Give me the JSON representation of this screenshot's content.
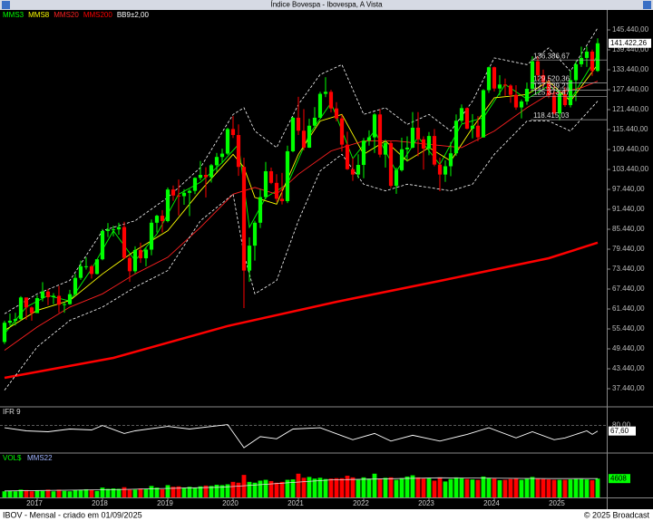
{
  "chart_data": {
    "type": "candlestick",
    "title": "Índice Bovespa - Ibovespa, A Vista",
    "up_color": "#00ff00",
    "down_color": "#ff0000",
    "xlim": [
      -0.83,
      110.67
    ],
    "xticks": [
      {
        "value": 6,
        "label": "2017"
      },
      {
        "value": 18,
        "label": "2018"
      },
      {
        "value": 30,
        "label": "2019"
      },
      {
        "value": 42,
        "label": "2020"
      },
      {
        "value": 54,
        "label": "2021"
      },
      {
        "value": 66,
        "label": "2022"
      },
      {
        "value": 78,
        "label": "2023"
      },
      {
        "value": 90,
        "label": "2024"
      },
      {
        "value": 102,
        "label": "2025"
      }
    ],
    "ylim": [
      32258,
      150622
    ],
    "yticks": [
      {
        "value": 37440,
        "label": "37.440,00"
      },
      {
        "value": 43440,
        "label": "43.440,00"
      },
      {
        "value": 49440,
        "label": "49.440,00"
      },
      {
        "value": 55440,
        "label": "55.440,00"
      },
      {
        "value": 61440,
        "label": "61.440,00"
      },
      {
        "value": 67440,
        "label": "67.440,00"
      },
      {
        "value": 73440,
        "label": "73.440,00"
      },
      {
        "value": 79440,
        "label": "79.440,00"
      },
      {
        "value": 85440,
        "label": "85.440,00"
      },
      {
        "value": 91440,
        "label": "91.440,00"
      },
      {
        "value": 97440,
        "label": "97.440,00"
      },
      {
        "value": 103440,
        "label": "103.440,00"
      },
      {
        "value": 109440,
        "label": "109.440,00"
      },
      {
        "value": 115440,
        "label": "115.440,00"
      },
      {
        "value": 121440,
        "label": "121.440,00"
      },
      {
        "value": 127440,
        "label": "127.440,00"
      },
      {
        "value": 133440,
        "label": "133.440,00"
      },
      {
        "value": 139440,
        "label": "139.440,00"
      },
      {
        "value": 145440,
        "label": "145.440,00"
      }
    ],
    "open": [
      51500,
      57300,
      57900,
      58400,
      64900,
      61900,
      60200,
      64700,
      66700,
      65000,
      65400,
      62700,
      62900,
      65900,
      70800,
      74300,
      74300,
      72000,
      76400,
      84900,
      85400,
      85400,
      86100,
      76800,
      72800,
      79200,
      76700,
      79300,
      87400,
      89500,
      87900,
      97400,
      95600,
      95400,
      96400,
      97000,
      100900,
      101800,
      101100,
      104700,
      107200,
      108200,
      115600,
      113800,
      104200,
      73000,
      80500,
      87400,
      95100,
      102900,
      99400,
      94600,
      93900,
      108900,
      119000,
      115100,
      110000,
      116600,
      119000,
      126200,
      126800,
      121800,
      118800,
      110900,
      103500,
      101900,
      104800,
      112100,
      113100,
      120000,
      107900,
      111400,
      98500,
      103200,
      109500,
      110000,
      116000,
      112500,
      109700,
      113500,
      104900,
      101900,
      104400,
      108300,
      118100,
      121900,
      115700,
      116600,
      113100,
      127300,
      134200,
      127800,
      129000,
      128700,
      125900,
      122100,
      123900,
      127700,
      136000,
      131800,
      129700,
      125700,
      120300,
      126100,
      122800,
      130300,
      135100,
      137000,
      138900,
      133100
    ],
    "high": [
      57900,
      60100,
      60300,
      65300,
      64900,
      62200,
      65600,
      69500,
      67500,
      66200,
      68400,
      63500,
      67200,
      72000,
      76000,
      77000,
      74700,
      76400,
      85500,
      87300,
      86500,
      87400,
      87700,
      77500,
      80300,
      81400,
      79900,
      88400,
      89800,
      91200,
      98000,
      98600,
      100400,
      97500,
      97500,
      101100,
      106000,
      104100,
      105100,
      108400,
      109700,
      116000,
      119500,
      117000,
      107000,
      83000,
      88000,
      97500,
      105700,
      104000,
      102000,
      102400,
      110600,
      119300,
      125300,
      121600,
      118700,
      122200,
      126800,
      131200,
      127400,
      123700,
      119900,
      114800,
      106900,
      108000,
      112900,
      115200,
      120400,
      121600,
      112400,
      112000,
      104000,
      113000,
      113400,
      120700,
      120700,
      113400,
      114700,
      115600,
      107000,
      106200,
      111700,
      120000,
      123000,
      122100,
      120100,
      119500,
      127600,
      134400,
      134400,
      131800,
      130800,
      129100,
      128800,
      124500,
      129600,
      137500,
      137500,
      133500,
      131300,
      128600,
      127200,
      128300,
      133300,
      136000,
      140400,
      140400,
      139500,
      142900
    ],
    "low": [
      50900,
      56400,
      56500,
      58000,
      58200,
      57900,
      60200,
      63700,
      62600,
      62900,
      60300,
      60300,
      62700,
      65400,
      70200,
      73300,
      70600,
      71800,
      76100,
      83100,
      83300,
      83800,
      76500,
      69600,
      72200,
      75300,
      74300,
      77600,
      84500,
      84500,
      87500,
      94000,
      89600,
      92800,
      89400,
      96000,
      100200,
      95000,
      99500,
      102700,
      105300,
      107800,
      112900,
      101500,
      61700,
      69600,
      76000,
      85800,
      94500,
      99000,
      93700,
      92900,
      93300,
      108600,
      113800,
      109200,
      109900,
      116000,
      119000,
      125200,
      120600,
      117900,
      108800,
      103300,
      100000,
      100800,
      100800,
      110600,
      108400,
      107100,
      104000,
      97900,
      96100,
      102800,
      105800,
      109800,
      107400,
      103400,
      107700,
      104400,
      96900,
      99700,
      101400,
      107500,
      117400,
      115500,
      112800,
      111900,
      113000,
      126500,
      126900,
      125700,
      125600,
      123500,
      121400,
      118800,
      122900,
      126700,
      130200,
      127800,
      124900,
      120000,
      118200,
      122300,
      122100,
      124000,
      134300,
      134300,
      131600,
      132800
    ],
    "close": [
      57300,
      57900,
      58400,
      64900,
      61900,
      60200,
      64700,
      66700,
      64980,
      65400,
      62700,
      62900,
      65900,
      70800,
      74300,
      74300,
      71970,
      76400,
      84900,
      85400,
      85400,
      86100,
      76800,
      72800,
      79200,
      76700,
      79300,
      87400,
      89500,
      87900,
      97400,
      95600,
      95400,
      96400,
      97000,
      100900,
      101800,
      101100,
      104700,
      107200,
      108200,
      115600,
      113800,
      104200,
      73000,
      80500,
      87400,
      95100,
      102900,
      99400,
      94600,
      93900,
      108900,
      119000,
      115100,
      110000,
      116600,
      119000,
      126200,
      126800,
      121800,
      118800,
      110900,
      103500,
      101900,
      104800,
      112100,
      113100,
      119999,
      107900,
      111400,
      98500,
      103200,
      109500,
      110000,
      116000,
      112500,
      109700,
      113500,
      104900,
      101900,
      104400,
      108300,
      118100,
      121900,
      115700,
      116600,
      113100,
      127300,
      134200,
      127800,
      129000,
      128700,
      125900,
      122100,
      123900,
      127700,
      136000,
      131800,
      129700,
      125700,
      120300,
      126100,
      122800,
      130300,
      135100,
      137000,
      138900,
      133100,
      141422.26
    ],
    "last_price": {
      "value": 141422.26,
      "label": "141.422,26"
    },
    "annotations": [
      {
        "value": 136386.67,
        "label": "136.386,67"
      },
      {
        "value": 129520.36,
        "label": "129.520,36"
      },
      {
        "value": 127339.21,
        "label": "127.339,21"
      },
      {
        "value": 125373.47,
        "label": "125.373,47"
      },
      {
        "value": 118415.03,
        "label": "118.415,03"
      }
    ],
    "overlays": [
      {
        "name": "MMS3",
        "color": "#00ff00",
        "x": [
          0,
          4,
          8,
          12,
          16,
          20,
          24,
          28,
          32,
          36,
          40,
          43,
          45,
          48,
          52,
          56,
          60,
          64,
          68,
          72,
          76,
          80,
          84,
          88,
          92,
          96,
          100,
          104,
          109
        ],
        "values": [
          54000,
          62000,
          65500,
          63800,
          73500,
          85000,
          76000,
          84000,
          96000,
          99600,
          105500,
          111000,
          86000,
          95000,
          99000,
          113900,
          123500,
          106700,
          115000,
          102800,
          113200,
          104900,
          117100,
          119000,
          129000,
          124600,
          128700,
          124400,
          137800
        ]
      },
      {
        "name": "MMS8",
        "color": "#ffff00",
        "x": [
          0,
          6,
          12,
          18,
          24,
          30,
          36,
          42,
          44,
          46,
          50,
          54,
          58,
          62,
          66,
          70,
          74,
          78,
          82,
          86,
          90,
          96,
          100,
          104,
          109
        ],
        "values": [
          55000,
          61000,
          64000,
          72000,
          79000,
          85000,
          97000,
          108000,
          104000,
          95000,
          93000,
          108000,
          118000,
          120000,
          108000,
          112000,
          106000,
          110000,
          106000,
          116000,
          125000,
          126000,
          130000,
          124000,
          135000
        ]
      },
      {
        "name": "MMS20",
        "color": "#ff2020",
        "x": [
          0,
          6,
          12,
          18,
          24,
          30,
          36,
          42,
          46,
          50,
          54,
          60,
          66,
          72,
          78,
          84,
          90,
          96,
          100,
          106,
          109
        ],
        "values": [
          49000,
          56000,
          62000,
          66000,
          72000,
          77000,
          86000,
          96000,
          98000,
          96000,
          102000,
          109000,
          112000,
          112000,
          111000,
          110000,
          115000,
          122000,
          126000,
          128000,
          130000
        ]
      },
      {
        "name": "MMS200",
        "color": "#ff0000",
        "x": [
          0,
          20,
          41,
          61,
          80,
          100,
          109
        ],
        "values": [
          40700,
          46700,
          56300,
          63600,
          69900,
          76700,
          81400
        ]
      },
      {
        "name": "BB9±2,00",
        "color": "#ffffff",
        "x": [
          0,
          6,
          12,
          18,
          24,
          30,
          36,
          42,
          44,
          46,
          50,
          54,
          58,
          62,
          66,
          70,
          74,
          78,
          82,
          86,
          90,
          96,
          100,
          104,
          109
        ],
        "upper": [
          60000,
          66000,
          70000,
          85000,
          88000,
          95000,
          104000,
          120000,
          122000,
          115000,
          110000,
          123000,
          132000,
          135000,
          120000,
          122000,
          117000,
          120000,
          115000,
          124000,
          137000,
          135000,
          140000,
          133000,
          146000
        ],
        "lower": [
          37000,
          50000,
          58000,
          62000,
          68000,
          73000,
          88000,
          96000,
          78000,
          66000,
          70000,
          88000,
          103000,
          108000,
          99000,
          97000,
          99000,
          98000,
          97000,
          99000,
          108000,
          118000,
          118000,
          115000,
          124000
        ]
      }
    ],
    "ifr": {
      "title": "IFR 9",
      "color": "#ffffff",
      "ylim": [
        20,
        120
      ],
      "yticks": [
        {
          "value": 80,
          "label": "80,00"
        }
      ],
      "x": [
        0,
        4,
        8,
        12,
        16,
        18,
        22,
        24,
        30,
        34,
        41,
        44,
        47,
        50,
        53,
        58,
        64,
        68,
        71,
        75,
        80,
        85,
        89,
        94,
        97,
        101,
        103,
        107,
        108,
        109
      ],
      "values": [
        75,
        68,
        66,
        72,
        70,
        80,
        62,
        68,
        78,
        72,
        82,
        30,
        55,
        50,
        72,
        75,
        48,
        62,
        45,
        58,
        45,
        60,
        75,
        52,
        66,
        48,
        52,
        68,
        60,
        67.6
      ],
      "last": {
        "value": 67.6,
        "label": "67,60"
      }
    },
    "volume": {
      "title": "VOL$",
      "ylim": [
        0,
        10400
      ],
      "values": [
        1500,
        1600,
        1500,
        1900,
        1800,
        1500,
        1700,
        1600,
        1900,
        1500,
        1900,
        1600,
        1500,
        1800,
        1900,
        2000,
        1900,
        1600,
        2400,
        2100,
        2200,
        2100,
        2500,
        1900,
        1900,
        2200,
        2100,
        2800,
        2400,
        2000,
        3000,
        2600,
        2700,
        2400,
        2600,
        2400,
        2700,
        2900,
        2800,
        3100,
        3000,
        3200,
        3800,
        3600,
        5500,
        3800,
        3600,
        4100,
        4300,
        4000,
        3600,
        3800,
        4300,
        4400,
        5800,
        4800,
        5000,
        4600,
        4800,
        4500,
        4600,
        4700,
        4700,
        5300,
        4900,
        4300,
        4900,
        4600,
        5800,
        4600,
        4800,
        4900,
        4300,
        4700,
        5100,
        5400,
        4900,
        4600,
        4700,
        4100,
        4900,
        3900,
        4500,
        4900,
        4700,
        4500,
        4400,
        4300,
        5100,
        4800,
        4600,
        4200,
        4300,
        4500,
        4700,
        4300,
        4600,
        5000,
        4600,
        4500,
        4400,
        4300,
        4300,
        4300,
        4400,
        4500,
        4500,
        4400,
        4200,
        4608
      ],
      "average": {
        "name": "MMS22",
        "color": "#e0e0e0",
        "x": [
          0,
          20,
          40,
          60,
          80,
          100,
          109
        ],
        "values": [
          1600,
          1900,
          2500,
          4300,
          4800,
          4600,
          4600
        ]
      }
    }
  },
  "footer": {
    "left": "IBOV - Mensal - criado em 01/09/2025",
    "right": "© 2025 Broadcast"
  }
}
